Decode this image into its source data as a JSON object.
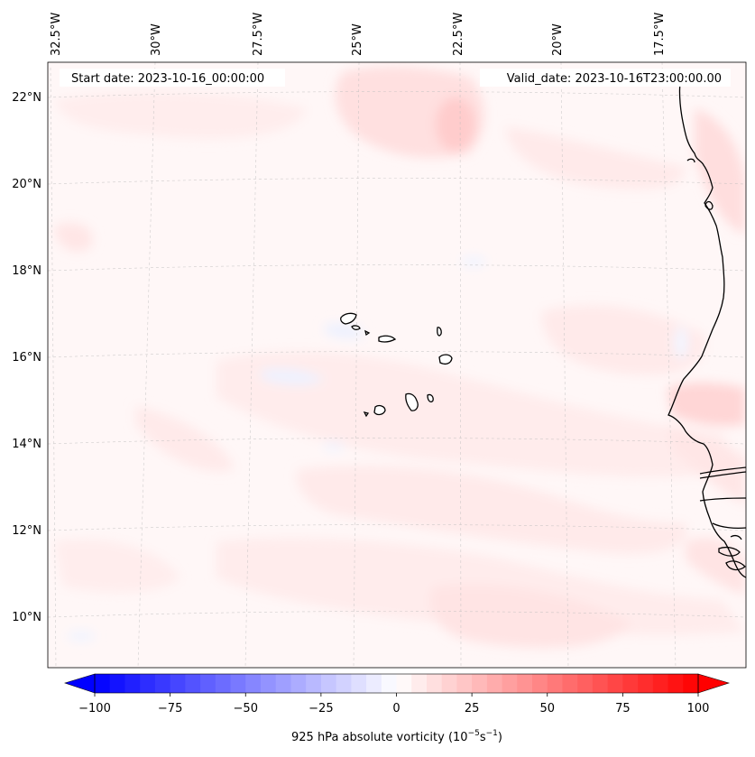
{
  "map": {
    "type": "contour_map",
    "variable": "925 hPa absolute vorticity",
    "start_date_text": "Start date: 2023-10-16_00:00:00",
    "valid_date_text": "Valid_date: 2023-10-16T23:00:00.00",
    "lon_labels": [
      "32.5°W",
      "30°W",
      "27.5°W",
      "25°W",
      "22.5°W",
      "20°W",
      "17.5°W"
    ],
    "lat_labels": [
      "22°N",
      "20°N",
      "18°N",
      "16°N",
      "14°N",
      "12°N",
      "10°N"
    ],
    "extent": {
      "lon_min": -33,
      "lon_max": -15.5,
      "lat_min": 9,
      "lat_max": 22.8
    },
    "regions": [
      "Cape Verde Islands",
      "West African coast (Mauritania, Senegal, Gambia, Guinea-Bissau)"
    ]
  },
  "colorbar": {
    "label_prefix": "925 hPa absolute vorticity (10",
    "label_exp1": "−5",
    "label_mid": "s",
    "label_exp2": "−1",
    "label_suffix": ")",
    "ticks": [
      "−100",
      "−75",
      "−50",
      "−25",
      "0",
      "25",
      "50",
      "75",
      "100"
    ],
    "tick_values": [
      -100,
      -75,
      -50,
      -25,
      0,
      25,
      50,
      75,
      100
    ],
    "min": -100,
    "max": 100,
    "step": 5,
    "colormap": "bwr",
    "colors": {
      "low": "#0000ff",
      "mid": "#ffffff",
      "high": "#ff0000"
    }
  }
}
